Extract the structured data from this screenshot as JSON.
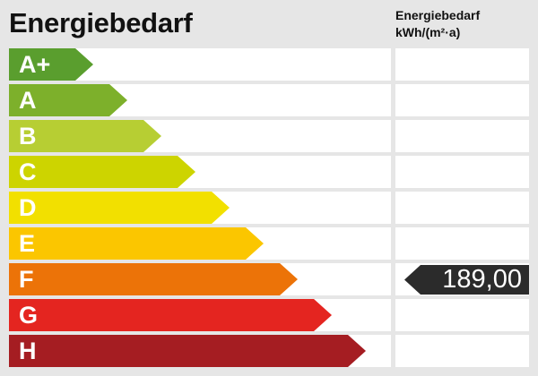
{
  "title": "Energiebedarf",
  "column_header": {
    "line1": "Energiebedarf",
    "line2": "kWh/(m²·a)"
  },
  "classes": [
    {
      "label": "A+",
      "color": "#5a9e2e"
    },
    {
      "label": "A",
      "color": "#7db02b"
    },
    {
      "label": "B",
      "color": "#b7ce33"
    },
    {
      "label": "C",
      "color": "#cdd400"
    },
    {
      "label": "D",
      "color": "#f2e000"
    },
    {
      "label": "E",
      "color": "#fbc600"
    },
    {
      "label": "F",
      "color": "#ec7308"
    },
    {
      "label": "G",
      "color": "#e42520"
    },
    {
      "label": "H",
      "color": "#a51d22"
    }
  ],
  "marker": {
    "class": "F",
    "value": "189,00",
    "color": "#2b2b2b"
  }
}
